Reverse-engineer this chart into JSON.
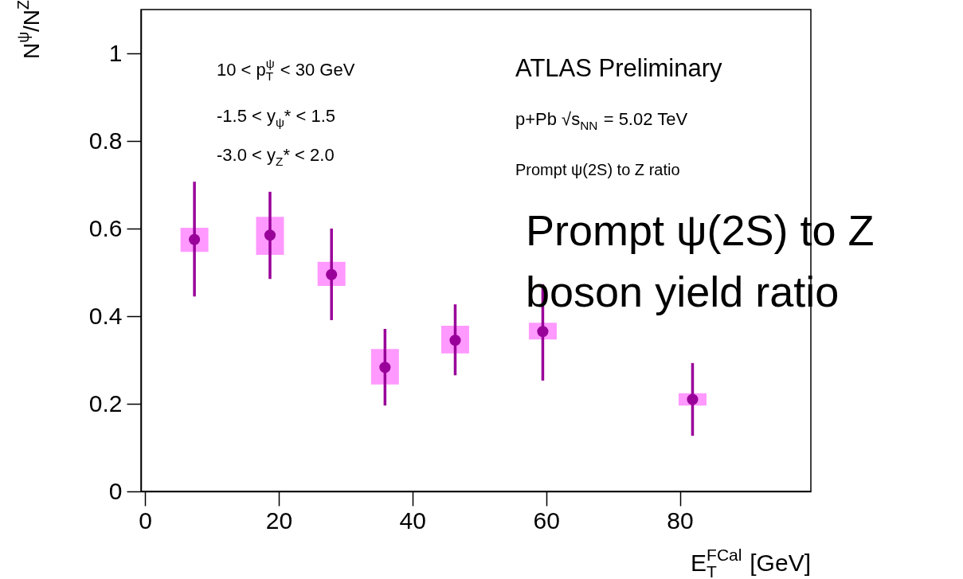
{
  "chart_data": {
    "type": "scatter",
    "xlabel": "E$_{T}$$^{FCal}$ [GeV]",
    "ylabel": "N$^{ψ}$/N$^{Z}$",
    "xlim": [
      0,
      99
    ],
    "ylim": [
      0,
      1.1
    ],
    "xticks": [
      0,
      20,
      40,
      60,
      80
    ],
    "yticks": [
      0,
      0.2,
      0.4,
      0.6,
      0.8,
      1
    ],
    "grid": false,
    "marker": "circle",
    "series": [
      {
        "type": "bar",
        "color": "#ff99ff",
        "x": [
          7.4,
          18.7,
          27.9,
          35.9,
          46.4,
          59.5,
          81.9
        ],
        "base": [
          0.547,
          0.54,
          0.469,
          0.244,
          0.315,
          0.347,
          0.196
        ],
        "values": [
          0.055,
          0.087,
          0.055,
          0.081,
          0.063,
          0.038,
          0.028
        ]
      },
      {
        "color": "#990099",
        "x": [
          7.4,
          18.7,
          27.9,
          35.9,
          46.4,
          59.5,
          81.9
        ],
        "values": [
          0.575,
          0.585,
          0.495,
          0.283,
          0.345,
          0.365,
          0.21
        ],
        "errors": [
          [
            0.445,
            0.707
          ],
          [
            0.485,
            0.684
          ],
          [
            0.391,
            0.6
          ],
          [
            0.196,
            0.371
          ],
          [
            0.265,
            0.427
          ],
          [
            0.253,
            0.473
          ],
          [
            0.127,
            0.293
          ]
        ]
      }
    ],
    "annotations": [
      "10 < p$_{T}$$^{ψ}$ < 30 GeV",
      "-1.5 < y$_{ψ}$* < 1.5",
      "-3.0 < y$_{Z}$* < 2.0",
      "ATLAS Preliminary",
      "p+Pb √s$_{NN}$ = 5.02 TeV",
      "Prompt ψ(2S) to Z ratio",
      "Prompt ψ(2S) to Z",
      "boson yield ratio"
    ]
  }
}
